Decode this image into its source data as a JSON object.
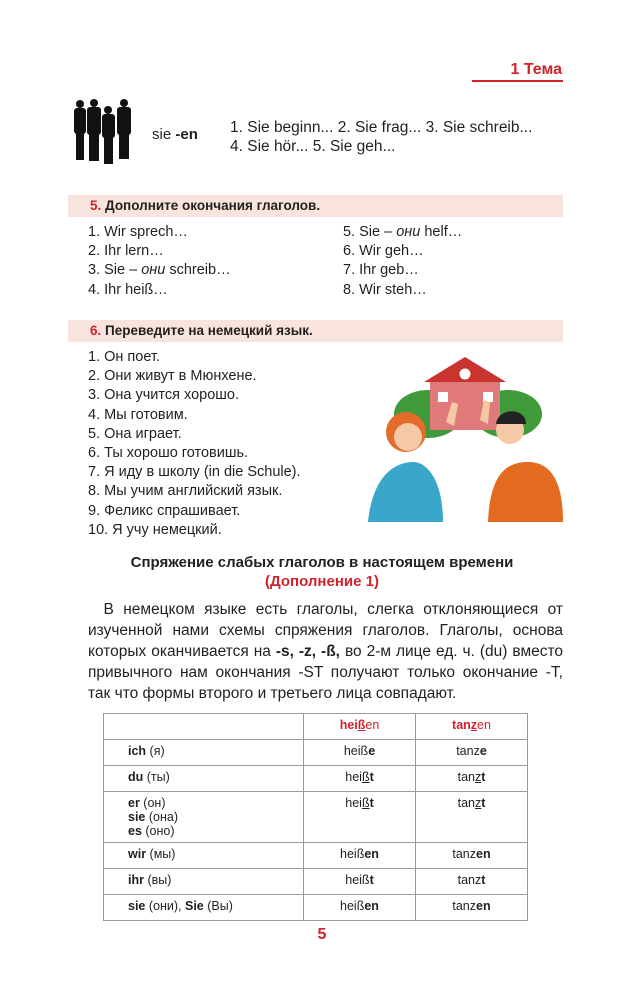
{
  "header": {
    "topic": "1 Тема"
  },
  "intro": {
    "pronoun": "sie",
    "ending": "-en",
    "line1": "1. Sie beginn... 2. Sie frag... 3. Sie schreib...",
    "line2": "4. Sie hör... 5. Sie geh..."
  },
  "ex5": {
    "num": "5.",
    "title": "Дополните окончания глаголов.",
    "col1": [
      "1. Wir sprech…",
      "2. Ihr lern…",
      "3. Sie – ",
      "4. Ihr heiß…"
    ],
    "col1_3_italic": "они",
    "col1_3_rest": " schreib…",
    "col2": [
      "5. Sie – ",
      "6. Wir geh…",
      "7. Ihr geb…",
      "8. Wir steh…"
    ],
    "col2_1_italic": "они",
    "col2_1_rest": " helf…"
  },
  "ex6": {
    "num": "6.",
    "title": "Переведите на немецкий язык.",
    "items": [
      "1. Он поет.",
      "2. Они живут в Мюнхене.",
      "3. Она учится хорошо.",
      "4. Мы готовим.",
      "5. Она играет.",
      "6. Ты хорошо готовишь.",
      "7. Я иду в школу (in die Schule).",
      "8. Мы учим английский язык.",
      "9. Феликс спрашивает.",
      "10. Я учу немецкий."
    ]
  },
  "section": {
    "title": "Спряжение слабых глаголов в настоящем времени",
    "subtitle": "(Дополнение 1)",
    "p1": "В немецком языке есть глаголы, слегка отклоняющиеся от изученной нами схемы спряжения глаголов. Глаголы, основа которых оканчивается на ",
    "endings": "-s, -z, -ß,",
    "p2": " во 2-м лице ед. ч. (du) вместо привычного нам окончания -ST получают только окончание -T, так что формы второго и третьего лица совпадают."
  },
  "table": {
    "headers": [
      {
        "pre": "hei",
        "u": "ß",
        "end": "en"
      },
      {
        "pre": "tan",
        "u": "z",
        "end": "en"
      }
    ],
    "rows": [
      {
        "p": [
          [
            "ich",
            " (я)"
          ]
        ],
        "c": [
          {
            "pre": "heiß",
            "u": "",
            "end": "e"
          },
          {
            "pre": "tanz",
            "u": "",
            "end": "e"
          }
        ]
      },
      {
        "p": [
          [
            "du",
            " (ты)"
          ]
        ],
        "c": [
          {
            "pre": "hei",
            "u": "ß",
            "end": "t"
          },
          {
            "pre": "tan",
            "u": "z",
            "end": "t"
          }
        ]
      },
      {
        "p": [
          [
            "er",
            " (он)"
          ],
          [
            "sie",
            " (она)"
          ],
          [
            "es",
            " (оно)"
          ]
        ],
        "c": [
          {
            "pre": "hei",
            "u": "ß",
            "end": "t"
          },
          {
            "pre": "tan",
            "u": "z",
            "end": "t"
          }
        ]
      },
      {
        "p": [
          [
            "wir",
            " (мы)"
          ]
        ],
        "c": [
          {
            "pre": "heiß",
            "u": "",
            "end": "en"
          },
          {
            "pre": "tanz",
            "u": "",
            "end": "en"
          }
        ]
      },
      {
        "p": [
          [
            "ihr",
            " (вы)"
          ]
        ],
        "c": [
          {
            "pre": "heiß",
            "u": "",
            "end": "t"
          },
          {
            "pre": "tanz",
            "u": "",
            "end": "t"
          }
        ]
      },
      {
        "p": [
          [
            "sie",
            " (они), "
          ],
          [
            "Sie",
            " (Вы)"
          ]
        ],
        "inline": true,
        "c": [
          {
            "pre": "heiß",
            "u": "",
            "end": "en"
          },
          {
            "pre": "tanz",
            "u": "",
            "end": "en"
          }
        ]
      }
    ]
  },
  "page_number": "5",
  "colors": {
    "accent": "#d2232a",
    "bar": "#f8e4dc"
  }
}
